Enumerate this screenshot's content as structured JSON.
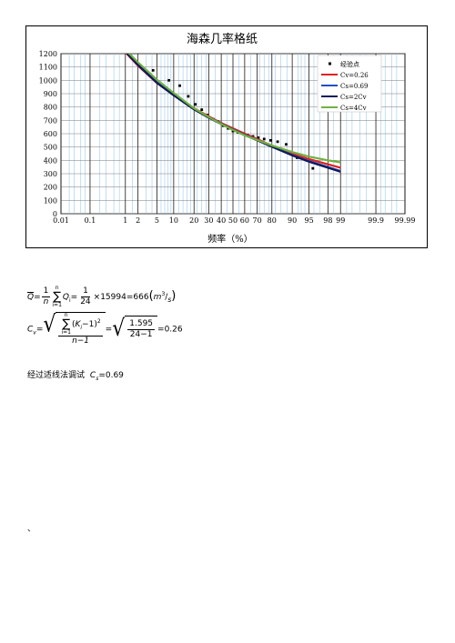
{
  "chart_data": {
    "type": "scatter",
    "title": "海森几率格纸",
    "xlabel": "频率（%）",
    "ylabel": "",
    "ylim": [
      0,
      1200
    ],
    "yticks": [
      0,
      100,
      200,
      300,
      400,
      500,
      600,
      700,
      800,
      900,
      1000,
      1100,
      1200
    ],
    "xscale": "normal-probability",
    "xticks": [
      "0.01",
      "0.1",
      "1",
      "2",
      "5",
      "10",
      "20",
      "30",
      "40",
      "50",
      "60",
      "70",
      "80",
      "90",
      "95",
      "98",
      "99",
      "99.9",
      "99.99"
    ],
    "legend_position": "top-right",
    "series": [
      {
        "name": "经验点",
        "kind": "points",
        "color": "#000000",
        "points": [
          {
            "x": 4.2,
            "y": 1075
          },
          {
            "x": 8.3,
            "y": 1000
          },
          {
            "x": 12.5,
            "y": 960
          },
          {
            "x": 16.7,
            "y": 880
          },
          {
            "x": 20.8,
            "y": 820
          },
          {
            "x": 25.0,
            "y": 780
          },
          {
            "x": 29.2,
            "y": 740
          },
          {
            "x": 33.3,
            "y": 710
          },
          {
            "x": 37.5,
            "y": 690
          },
          {
            "x": 41.7,
            "y": 660
          },
          {
            "x": 45.8,
            "y": 640
          },
          {
            "x": 50.0,
            "y": 620
          },
          {
            "x": 54.2,
            "y": 610
          },
          {
            "x": 58.3,
            "y": 600
          },
          {
            "x": 62.5,
            "y": 590
          },
          {
            "x": 66.7,
            "y": 580
          },
          {
            "x": 70.8,
            "y": 570
          },
          {
            "x": 75.0,
            "y": 560
          },
          {
            "x": 79.2,
            "y": 550
          },
          {
            "x": 83.3,
            "y": 540
          },
          {
            "x": 87.5,
            "y": 520
          },
          {
            "x": 91.7,
            "y": 420
          },
          {
            "x": 95.8,
            "y": 340
          }
        ]
      },
      {
        "name": "Cv=0.26",
        "kind": "line",
        "color": "#e02020",
        "points": [
          {
            "x": 1,
            "y": 1210
          },
          {
            "x": 2,
            "y": 1110
          },
          {
            "x": 5,
            "y": 980
          },
          {
            "x": 10,
            "y": 890
          },
          {
            "x": 20,
            "y": 790
          },
          {
            "x": 30,
            "y": 730
          },
          {
            "x": 40,
            "y": 680
          },
          {
            "x": 50,
            "y": 640
          },
          {
            "x": 60,
            "y": 600
          },
          {
            "x": 70,
            "y": 560
          },
          {
            "x": 80,
            "y": 510
          },
          {
            "x": 90,
            "y": 450
          },
          {
            "x": 95,
            "y": 410
          },
          {
            "x": 98,
            "y": 370
          },
          {
            "x": 99,
            "y": 345
          }
        ]
      },
      {
        "name": "Cs=0.69",
        "kind": "line",
        "color": "#2050c0",
        "points": [
          {
            "x": 1,
            "y": 1220
          },
          {
            "x": 2,
            "y": 1120
          },
          {
            "x": 5,
            "y": 985
          },
          {
            "x": 10,
            "y": 890
          },
          {
            "x": 20,
            "y": 785
          },
          {
            "x": 30,
            "y": 725
          },
          {
            "x": 40,
            "y": 675
          },
          {
            "x": 50,
            "y": 632
          },
          {
            "x": 60,
            "y": 592
          },
          {
            "x": 70,
            "y": 553
          },
          {
            "x": 80,
            "y": 505
          },
          {
            "x": 90,
            "y": 440
          },
          {
            "x": 95,
            "y": 395
          },
          {
            "x": 98,
            "y": 350
          },
          {
            "x": 99,
            "y": 320
          }
        ]
      },
      {
        "name": "Cs=2Cv",
        "kind": "line",
        "color": "#101a5a",
        "points": [
          {
            "x": 1,
            "y": 1215
          },
          {
            "x": 2,
            "y": 1115
          },
          {
            "x": 5,
            "y": 982
          },
          {
            "x": 10,
            "y": 888
          },
          {
            "x": 20,
            "y": 782
          },
          {
            "x": 30,
            "y": 720
          },
          {
            "x": 40,
            "y": 672
          },
          {
            "x": 50,
            "y": 630
          },
          {
            "x": 60,
            "y": 590
          },
          {
            "x": 70,
            "y": 550
          },
          {
            "x": 80,
            "y": 502
          },
          {
            "x": 90,
            "y": 437
          },
          {
            "x": 95,
            "y": 390
          },
          {
            "x": 98,
            "y": 345
          },
          {
            "x": 99,
            "y": 315
          }
        ]
      },
      {
        "name": "Cs=4Cv",
        "kind": "line",
        "color": "#70b040",
        "points": [
          {
            "x": 1,
            "y": 1230
          },
          {
            "x": 2,
            "y": 1135
          },
          {
            "x": 5,
            "y": 1005
          },
          {
            "x": 10,
            "y": 905
          },
          {
            "x": 20,
            "y": 790
          },
          {
            "x": 30,
            "y": 725
          },
          {
            "x": 40,
            "y": 672
          },
          {
            "x": 50,
            "y": 628
          },
          {
            "x": 60,
            "y": 588
          },
          {
            "x": 70,
            "y": 552
          },
          {
            "x": 80,
            "y": 512
          },
          {
            "x": 90,
            "y": 462
          },
          {
            "x": 95,
            "y": 428
          },
          {
            "x": 98,
            "y": 400
          },
          {
            "x": 99,
            "y": 385
          }
        ]
      }
    ]
  },
  "formulas": {
    "q_bar": "Q",
    "equals": "=",
    "one": "1",
    "n": "n",
    "sigma": "∑",
    "sum_top": "n",
    "sum_bottom": "i=1",
    "q_i": "Q",
    "q_sub": "i",
    "times": "×",
    "one_b": "1",
    "den_24": "24",
    "value_15994": "15994",
    "result_666": "666",
    "unit_m3": "m",
    "unit_exp": "3",
    "unit_s": "s",
    "cv": "C",
    "cv_sub": "v",
    "k_i": "K",
    "k_sub": "i",
    "minus_one": "−1",
    "sq": "2",
    "n_minus_1": "n−1",
    "num_1595": "1.595",
    "den_24_1": "24−1",
    "cv_value": "0.26"
  },
  "cs_text": {
    "label": "经过适线法调试",
    "symbol": "C",
    "sub": "s",
    "value": "=0.69"
  },
  "stray_mark": "、"
}
